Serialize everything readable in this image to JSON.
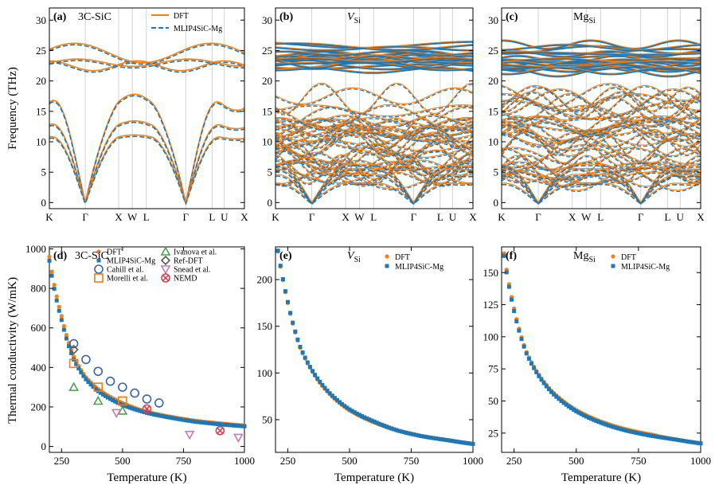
{
  "colors": {
    "dft": "#ff7f0e",
    "mlip": "#1f77b4",
    "cahill": "#3b64a8",
    "morelli": "#ef7a1a",
    "ivanova": "#4ea04e",
    "refdft": "#5a5a5a",
    "snead": "#c87ab0",
    "nemd": "#d6404f"
  },
  "top_row": {
    "ylabel": "Frequency (THz)",
    "ylim": [
      -1,
      32
    ],
    "yticks": [
      "0",
      "5",
      "10",
      "15",
      "20",
      "25",
      "30"
    ],
    "panels": [
      {
        "label": "(a)",
        "title": "3C-SiC",
        "title_sub": "",
        "kpath": [
          "K",
          "Γ",
          "X",
          "W",
          "L",
          "Γ",
          "L",
          "U",
          "X"
        ],
        "legend": [
          {
            "name": "DFT",
            "style": "solid"
          },
          {
            "name": "MLIP4SiC-Mg",
            "style": "dashed"
          }
        ]
      },
      {
        "label": "(b)",
        "title": "V",
        "title_sub": "Si",
        "kpath": [
          "K",
          "Γ",
          "X",
          "W",
          "L",
          "Γ",
          "L",
          "U",
          "X"
        ],
        "legend": []
      },
      {
        "label": "(c)",
        "title": "Mg",
        "title_sub": "Si",
        "kpath": [
          "K",
          "Γ",
          "X",
          "W",
          "L",
          "Γ",
          "L",
          "U",
          "X"
        ],
        "legend": []
      }
    ]
  },
  "bottom_row": {
    "ylabel": "Thermal conductivity (W/mK)",
    "xlabel": "Temperature (K)",
    "panels": [
      {
        "label": "(d)",
        "title": "3C-SiC",
        "title_sub": "",
        "xticks": [
          "250",
          "500",
          "750",
          "1000"
        ],
        "yticks": [
          "0",
          "200",
          "400",
          "600",
          "800",
          "1000"
        ],
        "legend": [
          {
            "name": "DFT"
          },
          {
            "name": "MLIP4SiC-Mg"
          },
          {
            "name": "Cahill et al."
          },
          {
            "name": "Morelli et al."
          },
          {
            "name": "Ivanova et al."
          },
          {
            "name": "Ref-DFT"
          },
          {
            "name": "Snead et al."
          },
          {
            "name": "NEMD"
          }
        ]
      },
      {
        "label": "(e)",
        "title": "V",
        "title_sub": "Si",
        "xticks": [
          "250",
          "500",
          "750",
          "1000"
        ],
        "yticks": [
          "50",
          "100",
          "150",
          "200"
        ],
        "legend": [
          {
            "name": "DFT"
          },
          {
            "name": "MLIP4SiC-Mg"
          }
        ]
      },
      {
        "label": "(f)",
        "title": "Mg",
        "title_sub": "Si",
        "xticks": [
          "250",
          "500",
          "750",
          "1000"
        ],
        "yticks": [
          "25",
          "50",
          "75",
          "100",
          "125",
          "150"
        ],
        "legend": [
          {
            "name": "DFT"
          },
          {
            "name": "MLIP4SiC-Mg"
          }
        ]
      }
    ]
  },
  "chart_data": [
    {
      "type": "line",
      "title": "3C-SiC",
      "ylabel": "Frequency (THz)",
      "ylim": [
        -1,
        32
      ],
      "x": [
        "K",
        "Γ",
        "X",
        "W",
        "L",
        "Γ",
        "L",
        "U",
        "X"
      ],
      "series": [
        {
          "name": "DFT",
          "values_at_K": [
            15.6,
            13.3,
            10.8,
            21.7,
            23.3,
            25.2
          ]
        },
        {
          "name": "MLIP4SiC-Mg",
          "values_at_K": [
            15.3,
            13.1,
            10.5,
            21.9,
            22.8,
            24.6
          ]
        }
      ]
    },
    {
      "type": "line",
      "title": "VSi",
      "ylabel": "Frequency (THz)",
      "ylim": [
        -1,
        32
      ],
      "x": [
        "K",
        "Γ",
        "X",
        "W",
        "L",
        "Γ",
        "L",
        "U",
        "X"
      ],
      "series": [
        {
          "name": "DFT",
          "band_range": [
            0,
            26.5
          ]
        },
        {
          "name": "MLIP4SiC-Mg",
          "band_range": [
            0,
            26.3
          ]
        }
      ]
    },
    {
      "type": "line",
      "title": "MgSi",
      "ylabel": "Frequency (THz)",
      "ylim": [
        -1,
        32
      ],
      "x": [
        "K",
        "Γ",
        "X",
        "W",
        "L",
        "Γ",
        "L",
        "U",
        "X"
      ],
      "series": [
        {
          "name": "DFT",
          "band_range": [
            0,
            26.2
          ]
        },
        {
          "name": "MLIP4SiC-Mg",
          "band_range": [
            0,
            26.0
          ]
        }
      ]
    },
    {
      "type": "scatter",
      "title": "3C-SiC",
      "xlabel": "Temperature (K)",
      "ylabel": "Thermal conductivity (W/mK)",
      "xlim": [
        200,
        1000
      ],
      "ylim": [
        -30,
        1010
      ],
      "series": [
        {
          "name": "DFT",
          "x": [
            200,
            250,
            300,
            350,
            400,
            500,
            600,
            700,
            800,
            900,
            1000
          ],
          "y": [
            960,
            660,
            455,
            350,
            290,
            220,
            175,
            150,
            130,
            117,
            106
          ]
        },
        {
          "name": "MLIP4SiC-Mg",
          "x": [
            200,
            250,
            300,
            350,
            400,
            500,
            600,
            700,
            800,
            900,
            1000
          ],
          "y": [
            940,
            640,
            440,
            340,
            280,
            210,
            170,
            145,
            125,
            112,
            102
          ]
        },
        {
          "name": "Cahill et al.",
          "x": [
            300,
            350,
            400,
            450,
            500,
            550,
            600,
            650
          ],
          "y": [
            520,
            440,
            380,
            330,
            300,
            270,
            240,
            220
          ]
        },
        {
          "name": "Morelli et al.",
          "x": [
            300,
            400,
            500
          ],
          "y": [
            420,
            300,
            230
          ]
        },
        {
          "name": "Ivanova et al.",
          "x": [
            300,
            400,
            500
          ],
          "y": [
            300,
            230,
            180
          ]
        },
        {
          "name": "Ref-DFT",
          "x": [
            300
          ],
          "y": [
            490
          ]
        },
        {
          "name": "Snead et al.",
          "x": [
            475,
            775,
            975
          ],
          "y": [
            170,
            60,
            45
          ]
        },
        {
          "name": "NEMD",
          "x": [
            600,
            900
          ],
          "y": [
            190,
            80
          ]
        }
      ]
    },
    {
      "type": "scatter",
      "title": "VSi",
      "xlabel": "Temperature (K)",
      "xlim": [
        200,
        1000
      ],
      "ylim": [
        15,
        235
      ],
      "series": [
        {
          "name": "DFT",
          "x": [
            210,
            250,
            300,
            400,
            500,
            600,
            700,
            800,
            900,
            1000
          ],
          "y": [
            230,
            175,
            127,
            83,
            60,
            47,
            38,
            32,
            28,
            24
          ]
        },
        {
          "name": "MLIP4SiC-Mg",
          "x": [
            210,
            250,
            300,
            400,
            500,
            600,
            700,
            800,
            900,
            1000
          ],
          "y": [
            231,
            176,
            128,
            84,
            61,
            48,
            38,
            32,
            28,
            24
          ]
        }
      ]
    },
    {
      "type": "scatter",
      "title": "MgSi",
      "xlabel": "Temperature (K)",
      "xlim": [
        200,
        1000
      ],
      "ylim": [
        10,
        170
      ],
      "series": [
        {
          "name": "DFT",
          "x": [
            210,
            250,
            300,
            400,
            500,
            600,
            700,
            800,
            900,
            1000
          ],
          "y": [
            165,
            122,
            88,
            58,
            43,
            34,
            28,
            24,
            20,
            17
          ]
        },
        {
          "name": "MLIP4SiC-Mg",
          "x": [
            210,
            250,
            300,
            400,
            500,
            600,
            700,
            800,
            900,
            1000
          ],
          "y": [
            163,
            120,
            87,
            57,
            42,
            33,
            27,
            23,
            20,
            17
          ]
        }
      ]
    }
  ]
}
